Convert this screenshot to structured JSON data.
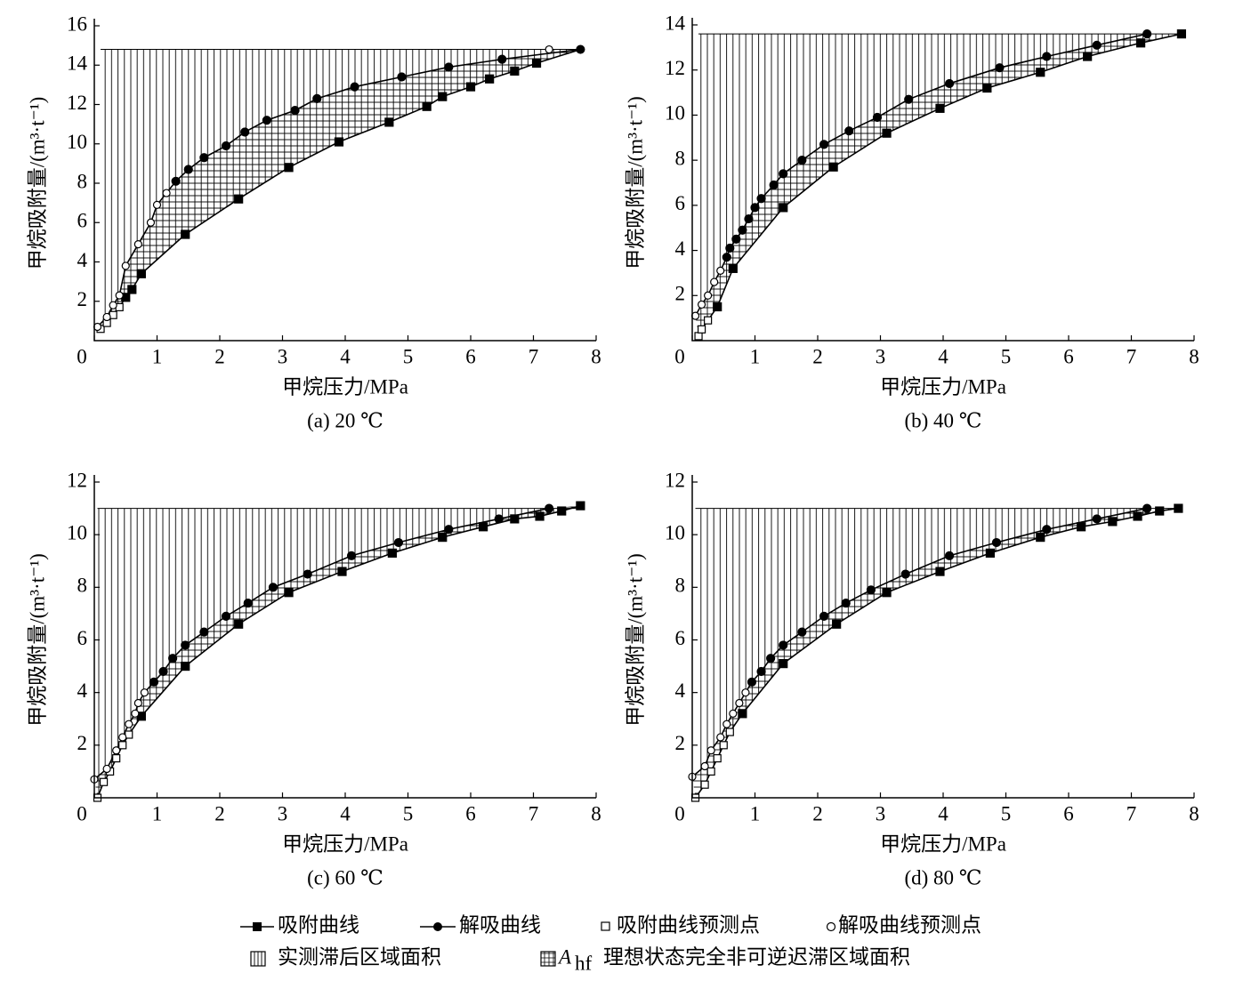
{
  "chart_data": [
    {
      "type": "line",
      "title": "(a) 20 ℃",
      "xlabel": "甲烷压力/MPa",
      "ylabel": "甲烷吸附量/(m³·t⁻¹)",
      "xlim": [
        0,
        8
      ],
      "xticks": [
        0,
        1,
        2,
        3,
        4,
        5,
        6,
        7,
        8
      ],
      "ylim": [
        0,
        16
      ],
      "yticks": [
        2,
        4,
        6,
        8,
        10,
        12,
        14,
        16
      ],
      "series": [
        {
          "name": "吸附曲线",
          "marker": "square",
          "color": "#000",
          "x": [
            0.5,
            0.6,
            0.75,
            1.45,
            2.3,
            3.1,
            3.9,
            4.7,
            5.3,
            5.55,
            6.0,
            6.3,
            6.7,
            7.05
          ],
          "values": [
            2.2,
            2.6,
            3.4,
            5.4,
            7.2,
            8.8,
            10.1,
            11.1,
            11.9,
            12.4,
            12.9,
            13.3,
            13.7,
            14.1
          ]
        },
        {
          "name": "解吸曲线",
          "marker": "circle",
          "color": "#000",
          "x": [
            1.3,
            1.5,
            1.75,
            2.1,
            2.4,
            2.75,
            3.2,
            3.55,
            4.15,
            4.9,
            5.65,
            6.5,
            7.75
          ],
          "values": [
            8.1,
            8.7,
            9.3,
            9.9,
            10.6,
            11.2,
            11.7,
            12.3,
            12.9,
            13.4,
            13.9,
            14.3,
            14.8
          ]
        },
        {
          "name": "吸附曲线预测点",
          "marker": "open-square",
          "color": "#000",
          "x": [
            0.1,
            0.2,
            0.3,
            0.4
          ],
          "values": [
            0.6,
            0.9,
            1.3,
            1.7
          ]
        },
        {
          "name": "解吸曲线预测点",
          "marker": "open-circle",
          "color": "#000",
          "x": [
            0.05,
            0.2,
            0.3,
            0.4,
            0.5,
            0.7,
            0.9,
            1.0,
            1.15,
            7.25
          ],
          "values": [
            0.7,
            1.2,
            1.8,
            2.3,
            3.8,
            4.9,
            6.0,
            6.9,
            7.5,
            14.8
          ]
        }
      ],
      "areas": [
        {
          "label": "实测滞后区域面积",
          "pattern": "vertical"
        },
        {
          "symbol": "A",
          "subscript": "hf",
          "label": "理想状态完全非可逆迟滞区域面积",
          "pattern": "grid"
        }
      ]
    },
    {
      "type": "line",
      "title": "(b) 40 ℃",
      "xlabel": "甲烷压力/MPa",
      "ylabel": "甲烷吸附量/(m³·t⁻¹)",
      "xlim": [
        0,
        8
      ],
      "xticks": [
        0,
        1,
        2,
        3,
        4,
        5,
        6,
        7,
        8
      ],
      "ylim": [
        0,
        14
      ],
      "yticks": [
        2,
        4,
        6,
        8,
        10,
        12,
        14
      ],
      "series": [
        {
          "marker": "square",
          "color": "#000",
          "x": [
            0.4,
            0.65,
            1.45,
            2.25,
            3.1,
            3.95,
            4.7,
            5.55,
            6.3,
            7.15,
            7.8
          ],
          "values": [
            1.5,
            3.2,
            5.9,
            7.7,
            9.2,
            10.3,
            11.2,
            11.9,
            12.6,
            13.2,
            13.6
          ]
        },
        {
          "marker": "circle",
          "color": "#000",
          "x": [
            0.55,
            0.6,
            0.7,
            0.8,
            0.9,
            1.0,
            1.1,
            1.3,
            1.45,
            1.75,
            2.1,
            2.5,
            2.95,
            3.45,
            4.1,
            4.9,
            5.65,
            6.45,
            7.25
          ],
          "values": [
            3.7,
            4.1,
            4.5,
            4.9,
            5.4,
            5.9,
            6.3,
            6.9,
            7.4,
            8.0,
            8.7,
            9.3,
            9.9,
            10.7,
            11.4,
            12.1,
            12.6,
            13.1,
            13.6
          ]
        },
        {
          "marker": "open-square",
          "color": "#000",
          "x": [
            0.1,
            0.15,
            0.25
          ],
          "values": [
            0.2,
            0.5,
            0.9
          ]
        },
        {
          "marker": "open-circle",
          "color": "#000",
          "x": [
            0.05,
            0.15,
            0.25,
            0.35,
            0.45
          ],
          "values": [
            1.1,
            1.6,
            2.0,
            2.6,
            3.1
          ]
        }
      ]
    },
    {
      "type": "line",
      "title": "(c) 60 ℃",
      "xlabel": "甲烷压力/MPa",
      "ylabel": "甲烷吸附量/(m³·t⁻¹)",
      "xlim": [
        0,
        8
      ],
      "xticks": [
        0,
        1,
        2,
        3,
        4,
        5,
        6,
        7,
        8
      ],
      "ylim": [
        0,
        12
      ],
      "yticks": [
        2,
        4,
        6,
        8,
        10,
        12
      ],
      "series": [
        {
          "marker": "square",
          "color": "#000",
          "x": [
            0.75,
            1.45,
            2.3,
            3.1,
            3.95,
            4.75,
            5.55,
            6.2,
            6.7,
            7.1,
            7.45,
            7.75
          ],
          "values": [
            3.1,
            5.0,
            6.6,
            7.8,
            8.6,
            9.3,
            9.9,
            10.3,
            10.6,
            10.7,
            10.9,
            11.1
          ]
        },
        {
          "marker": "circle",
          "color": "#000",
          "x": [
            0.95,
            1.1,
            1.25,
            1.45,
            1.75,
            2.1,
            2.45,
            2.85,
            3.4,
            4.1,
            4.85,
            5.65,
            6.45,
            7.25
          ],
          "values": [
            4.4,
            4.8,
            5.3,
            5.8,
            6.3,
            6.9,
            7.4,
            8.0,
            8.5,
            9.2,
            9.7,
            10.2,
            10.6,
            11.0
          ]
        },
        {
          "marker": "open-square",
          "color": "#000",
          "x": [
            0.05,
            0.15,
            0.25,
            0.35,
            0.45,
            0.55
          ],
          "values": [
            0,
            0.6,
            1.0,
            1.5,
            2.0,
            2.4
          ]
        },
        {
          "marker": "open-circle",
          "color": "#000",
          "x": [
            0.0,
            0.2,
            0.35,
            0.45,
            0.55,
            0.65,
            0.7,
            0.8
          ],
          "values": [
            0.7,
            1.1,
            1.8,
            2.3,
            2.8,
            3.2,
            3.6,
            4.0
          ]
        }
      ]
    },
    {
      "type": "line",
      "title": "(d) 80 ℃",
      "xlabel": "甲烷压力/MPa",
      "ylabel": "甲烷吸附量/(m³·t⁻¹)",
      "xlim": [
        0,
        8
      ],
      "xticks": [
        0,
        1,
        2,
        3,
        4,
        5,
        6,
        7,
        8
      ],
      "ylim": [
        0,
        12
      ],
      "yticks": [
        2,
        4,
        6,
        8,
        10,
        12
      ],
      "series": [
        {
          "marker": "square",
          "color": "#000",
          "x": [
            0.8,
            1.45,
            2.3,
            3.1,
            3.95,
            4.75,
            5.55,
            6.2,
            6.7,
            7.1,
            7.45,
            7.75
          ],
          "values": [
            3.2,
            5.1,
            6.6,
            7.8,
            8.6,
            9.3,
            9.9,
            10.3,
            10.5,
            10.7,
            10.9,
            11.0
          ]
        },
        {
          "marker": "circle",
          "color": "#000",
          "x": [
            0.95,
            1.1,
            1.25,
            1.45,
            1.75,
            2.1,
            2.45,
            2.85,
            3.4,
            4.1,
            4.85,
            5.65,
            6.45,
            7.25
          ],
          "values": [
            4.4,
            4.8,
            5.3,
            5.8,
            6.3,
            6.9,
            7.4,
            7.9,
            8.5,
            9.2,
            9.7,
            10.2,
            10.6,
            11.0
          ]
        },
        {
          "marker": "open-square",
          "color": "#000",
          "x": [
            0.05,
            0.2,
            0.3,
            0.4,
            0.5,
            0.6
          ],
          "values": [
            0,
            0.5,
            1.0,
            1.5,
            2.0,
            2.5
          ]
        },
        {
          "marker": "open-circle",
          "color": "#000",
          "x": [
            0.0,
            0.2,
            0.3,
            0.45,
            0.55,
            0.65,
            0.75,
            0.85
          ],
          "values": [
            0.8,
            1.2,
            1.8,
            2.3,
            2.8,
            3.2,
            3.6,
            4.0
          ]
        }
      ]
    }
  ]
}
